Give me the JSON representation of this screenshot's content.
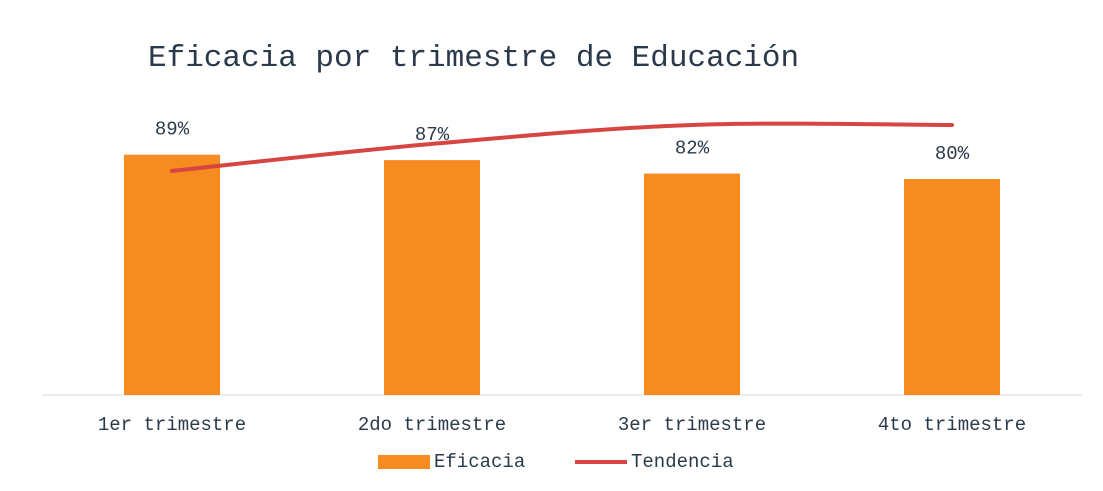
{
  "chart_data": {
    "type": "bar",
    "title": "Eficacia por trimestre de Educación",
    "categories": [
      "1er trimestre",
      "2do trimestre",
      "3er trimestre",
      "4to trimestre"
    ],
    "series": [
      {
        "name": "Eficacia",
        "type": "bar",
        "color": "#f68b1f",
        "values": [
          89,
          87,
          82,
          80
        ],
        "value_labels": [
          "89%",
          "87%",
          "82%",
          "80%"
        ]
      },
      {
        "name": "Tendencia",
        "type": "line",
        "color": "#d64541",
        "values": [
          83,
          93,
          100,
          100
        ]
      }
    ],
    "ylim": [
      0,
      100
    ],
    "legend": "bottom"
  }
}
